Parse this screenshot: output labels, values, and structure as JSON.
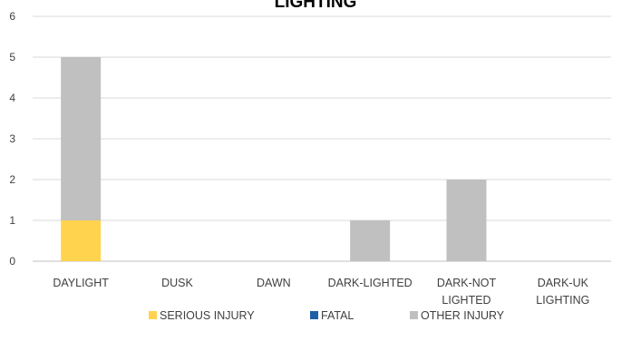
{
  "chart_data": {
    "type": "bar",
    "stacked": true,
    "title": "LIGHTING",
    "categories": [
      [
        "DAYLIGHT"
      ],
      [
        "DUSK"
      ],
      [
        "DAWN"
      ],
      [
        "DARK-LIGHTED"
      ],
      [
        "DARK-NOT",
        "LIGHTED"
      ],
      [
        "DARK-UK",
        "LIGHTING"
      ]
    ],
    "series": [
      {
        "name": "SERIOUS INJURY",
        "color": "#FFD34E",
        "values": [
          1,
          0,
          0,
          0,
          0,
          0
        ]
      },
      {
        "name": "FATAL",
        "color": "#1F5FA8",
        "values": [
          0,
          0,
          0,
          0,
          0,
          0
        ]
      },
      {
        "name": "OTHER INJURY",
        "color": "#C0C0C0",
        "values": [
          4,
          0,
          0,
          1,
          2,
          0
        ]
      }
    ],
    "ylim": [
      0,
      6
    ],
    "yticks": [
      0,
      1,
      2,
      3,
      4,
      5,
      6
    ],
    "grid": true,
    "legend": "bottom"
  }
}
